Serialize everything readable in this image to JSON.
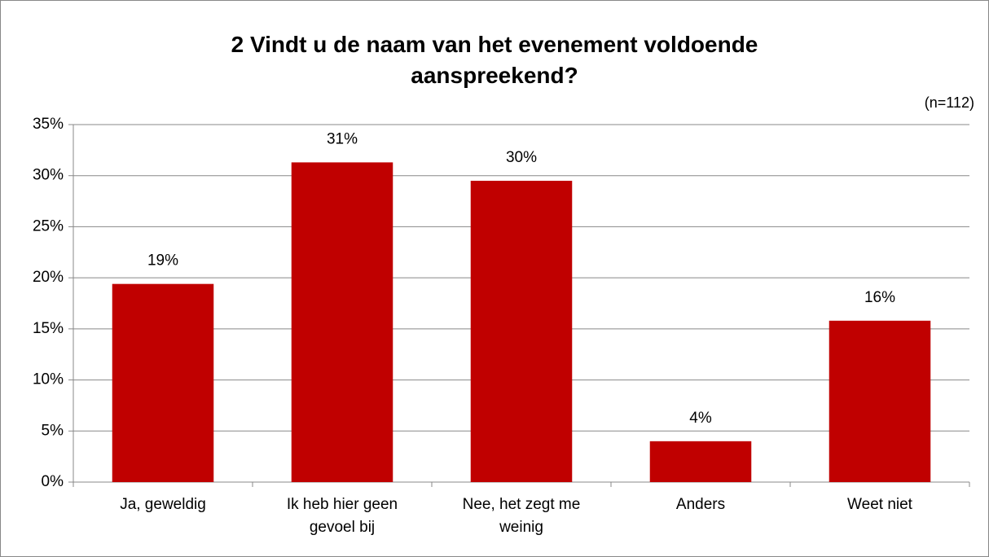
{
  "chart_data": {
    "type": "bar",
    "title": "2 Vindt u de naam van het evenement voldoende aanspreekend?",
    "annotation": "(n=112)",
    "categories": [
      "Ja, geweldig",
      "Ik heb hier geen gevoel bij",
      "Nee, het zegt me weinig",
      "Anders",
      "Weet niet"
    ],
    "values": [
      19.4,
      31.3,
      29.5,
      4.0,
      15.8
    ],
    "value_labels": [
      "19%",
      "31%",
      "30%",
      "4%",
      "16%"
    ],
    "color": "#c00000",
    "ylim": [
      0,
      35
    ],
    "yticks": [
      {
        "value": 0,
        "label": "0%"
      },
      {
        "value": 5,
        "label": "5%"
      },
      {
        "value": 10,
        "label": "10%"
      },
      {
        "value": 15,
        "label": "15%"
      },
      {
        "value": 20,
        "label": "20%"
      },
      {
        "value": 25,
        "label": "25%"
      },
      {
        "value": 30,
        "label": "30%"
      },
      {
        "value": 35,
        "label": "35%"
      }
    ],
    "grid": true
  }
}
